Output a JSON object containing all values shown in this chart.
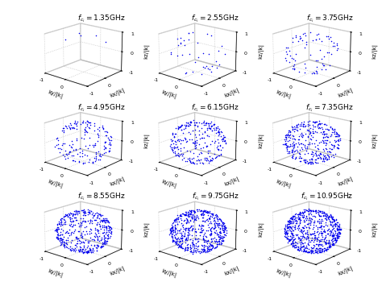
{
  "frequencies": [
    "1.35",
    "2.55",
    "3.75",
    "4.95",
    "6.15",
    "7.35",
    "8.55",
    "9.75",
    "10.95"
  ],
  "n_points": [
    5,
    40,
    80,
    180,
    280,
    380,
    500,
    650,
    750
  ],
  "dot_color": "#0000ee",
  "dot_size": 1.2,
  "axis_label_kx": "kx/|k|",
  "axis_label_ky": "ky/|k|",
  "axis_label_kz": "kz/|k|",
  "axis_lim": [
    -1,
    1
  ],
  "elev": 18,
  "azim": -50,
  "grid_color": "#bbbbbb",
  "title_fontsize": 6.5,
  "label_fontsize": 5,
  "tick_fontsize": 4.5,
  "fig_width": 4.74,
  "fig_height": 3.55,
  "dpi": 100
}
